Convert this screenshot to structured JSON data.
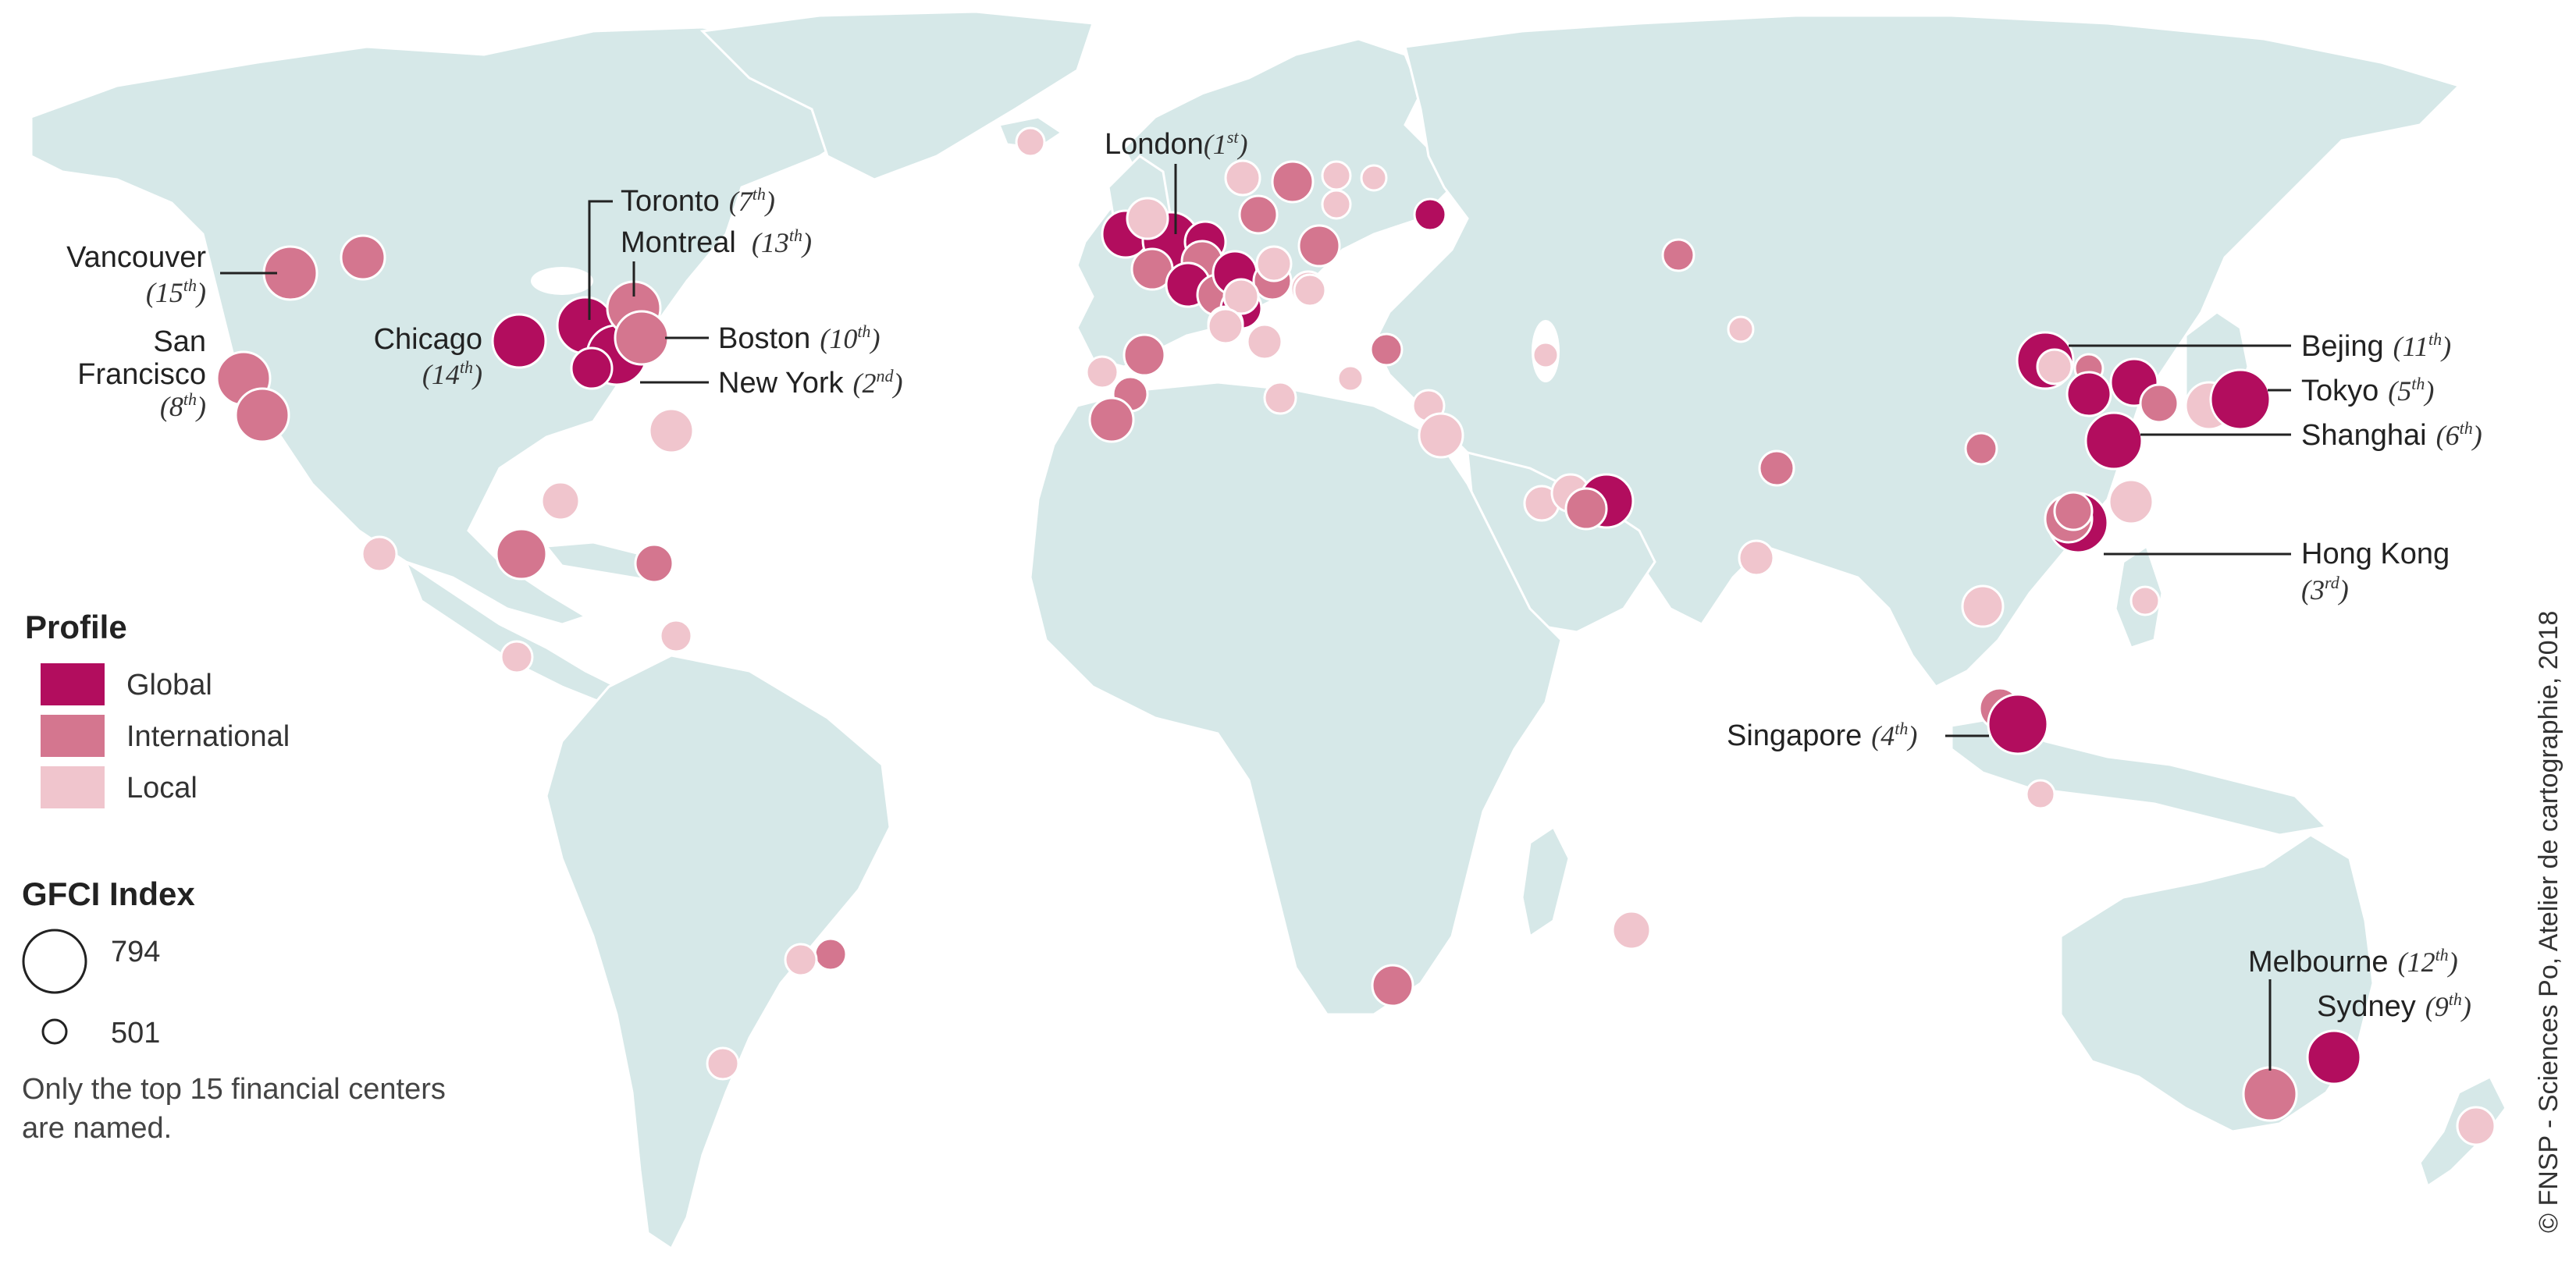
{
  "legend": {
    "profile_title": "Profile",
    "profile_items": [
      {
        "label": "Global",
        "color": "#b20d5e"
      },
      {
        "label": "International",
        "color": "#d4768f"
      },
      {
        "label": "Local",
        "color": "#f0c5cd"
      }
    ],
    "index_title": "GFCI Index",
    "index_max_label": "794",
    "index_min_label": "501",
    "note_line1": "Only the top 15 financial centers",
    "note_line2": "are named."
  },
  "credit": "© FNSP - Sciences Po, Atelier de cartographie, 2018",
  "named_centers": [
    {
      "name": "London",
      "rank": "1",
      "sup": "st"
    },
    {
      "name": "New York",
      "rank": "2",
      "sup": "nd"
    },
    {
      "name": "Hong Kong",
      "rank": "3",
      "sup": "rd"
    },
    {
      "name": "Singapore",
      "rank": "4",
      "sup": "th"
    },
    {
      "name": "Tokyo",
      "rank": "5",
      "sup": "th"
    },
    {
      "name": "Shanghai",
      "rank": "6",
      "sup": "th"
    },
    {
      "name": "Toronto",
      "rank": "7",
      "sup": "th"
    },
    {
      "name": "San Francisco",
      "rank": "8",
      "sup": "th"
    },
    {
      "name": "Sydney",
      "rank": "9",
      "sup": "th"
    },
    {
      "name": "Boston",
      "rank": "10",
      "sup": "th"
    },
    {
      "name": "Bejing",
      "rank": "11",
      "sup": "th"
    },
    {
      "name": "Melbourne",
      "rank": "12",
      "sup": "th"
    },
    {
      "name": "Montreal",
      "rank": "13",
      "sup": "th"
    },
    {
      "name": "Chicago",
      "rank": "14",
      "sup": "th"
    },
    {
      "name": "Vancouver",
      "rank": "15",
      "sup": "th"
    }
  ],
  "label_text": {
    "london": "London",
    "toronto": "Toronto",
    "montreal": "Montreal",
    "vancouver": "Vancouver",
    "sanfrancisco_1": "San",
    "sanfrancisco_2": "Francisco",
    "chicago": "Chicago",
    "boston": "Boston",
    "newyork": "New York",
    "beijing": "Bejing",
    "tokyo": "Tokyo",
    "shanghai": "Shanghai",
    "hongkong": "Hong Kong",
    "singapore": "Singapore",
    "melbourne": "Melbourne",
    "sydney": "Sydney"
  },
  "rank_text": {
    "london": "1",
    "london_sup": "st",
    "toronto": "7",
    "toronto_sup": "th",
    "montreal": "13",
    "montreal_sup": "th",
    "vancouver": "15",
    "vancouver_sup": "th",
    "sanfrancisco": "8",
    "sanfrancisco_sup": "th",
    "chicago": "14",
    "chicago_sup": "th",
    "boston": "10",
    "boston_sup": "th",
    "newyork": "2",
    "newyork_sup": "nd",
    "beijing": "11",
    "beijing_sup": "th",
    "tokyo": "5",
    "tokyo_sup": "th",
    "shanghai": "6",
    "shanghai_sup": "th",
    "hongkong": "3",
    "hongkong_sup": "rd",
    "singapore": "4",
    "singapore_sup": "th",
    "melbourne": "12",
    "melbourne_sup": "th",
    "sydney": "9",
    "sydney_sup": "th"
  },
  "colors": {
    "land": "#d6e8e8",
    "global": "#b20d5e",
    "international": "#d4768f",
    "local": "#f0c5cd"
  }
}
